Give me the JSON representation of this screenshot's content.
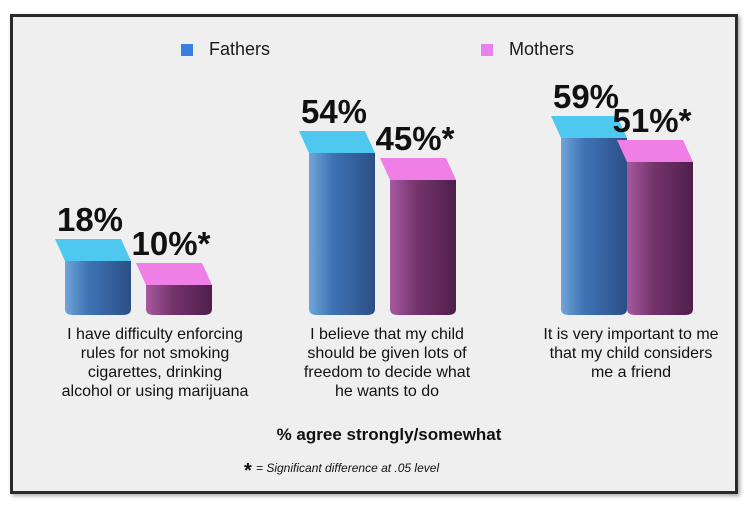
{
  "chart_data": {
    "type": "bar",
    "categories": [
      [
        "I have difficulty enforcing",
        "rules for not smoking",
        "cigarettes, drinking",
        "alcohol or using marijuana"
      ],
      [
        "I believe that my child",
        "should be given lots of",
        "freedom to decide what",
        "he wants to do"
      ],
      [
        "It is very important to me",
        "that my child considers",
        "me a friend"
      ]
    ],
    "series": [
      {
        "name": "Fathers",
        "values": [
          18,
          54,
          59
        ],
        "labels": [
          "18%",
          "54%",
          "59%"
        ]
      },
      {
        "name": "Mothers",
        "values": [
          10,
          45,
          51
        ],
        "labels": [
          "10%*",
          "45%*",
          "51%*"
        ]
      }
    ],
    "xlabel": "% agree strongly/somewhat",
    "ylim": [
      0,
      60
    ],
    "legend": "top",
    "footnote_symbol": "*",
    "footnote": "= Significant difference at .05 level",
    "colors": {
      "fathers_front": "#3f73b5",
      "fathers_top": "#4fc8ef",
      "mothers_front": "#74346c",
      "mothers_top": "#ef7ee6",
      "legend_fathers": "#3a7fe0",
      "legend_mothers": "#ea80ec"
    }
  }
}
